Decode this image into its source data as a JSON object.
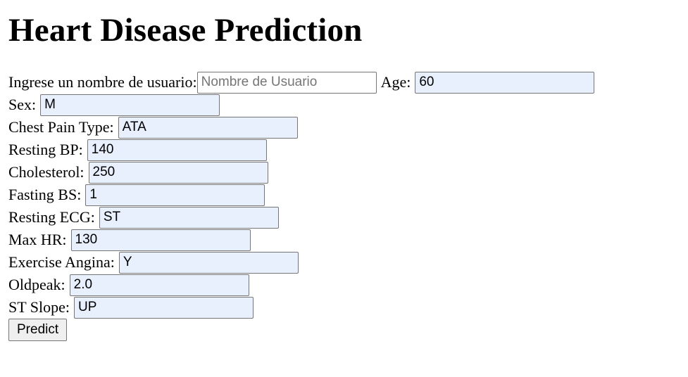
{
  "page": {
    "title": "Heart Disease Prediction"
  },
  "form": {
    "username": {
      "label": "Ingrese un nombre de usuario:",
      "placeholder": "Nombre de Usuario",
      "value": ""
    },
    "age": {
      "label": "Age:",
      "value": "60"
    },
    "sex": {
      "label": "Sex:",
      "value": "M"
    },
    "chest_pain_type": {
      "label": "Chest Pain Type:",
      "value": "ATA"
    },
    "resting_bp": {
      "label": "Resting BP:",
      "value": "140"
    },
    "cholesterol": {
      "label": "Cholesterol:",
      "value": "250"
    },
    "fasting_bs": {
      "label": "Fasting BS:",
      "value": "1"
    },
    "resting_ecg": {
      "label": "Resting ECG:",
      "value": "ST"
    },
    "max_hr": {
      "label": "Max HR:",
      "value": "130"
    },
    "exercise_angina": {
      "label": "Exercise Angina:",
      "value": "Y"
    },
    "oldpeak": {
      "label": "Oldpeak:",
      "value": "2.0"
    },
    "st_slope": {
      "label": "ST Slope:",
      "value": "UP"
    },
    "submit_label": "Predict"
  },
  "colors": {
    "autofill_background": "#e8f0fe",
    "input_border": "#767676",
    "button_background": "#efefef"
  }
}
